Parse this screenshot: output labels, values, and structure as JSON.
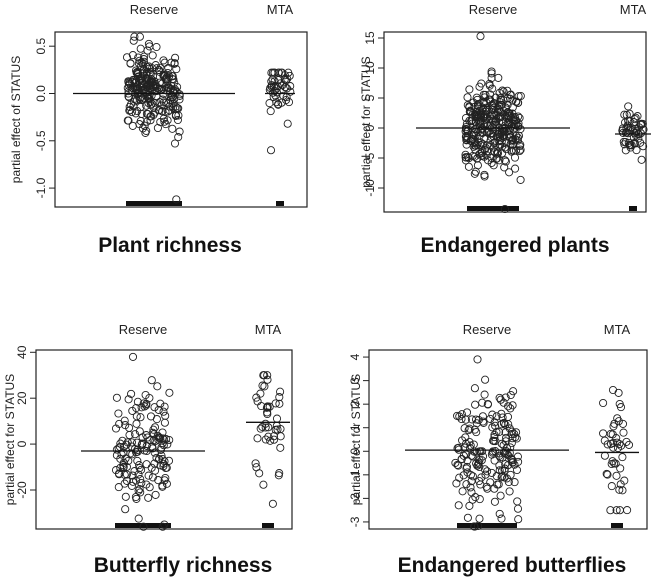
{
  "figure": {
    "background": "#ffffff",
    "ink": "#222222"
  },
  "chart_data": [
    {
      "id": "plant-richness",
      "type": "scatter",
      "title": "Plant richness",
      "ylabel": "partial effect of STATUS",
      "categories": [
        "Reserve",
        "MTA"
      ],
      "ylim": [
        -1.2,
        0.65
      ],
      "yticks": [
        -1.0,
        -0.5,
        0.0,
        0.5
      ],
      "ytick_labels": [
        "-1.0",
        "-0.5",
        "0.0",
        "0.5"
      ],
      "means": [
        0.0,
        0.0
      ],
      "groups": [
        {
          "name": "Reserve",
          "n": 260,
          "center": 0.05,
          "spread": 0.2,
          "min": -1.12,
          "max": 0.6
        },
        {
          "name": "MTA",
          "n": 50,
          "center": 0.03,
          "spread": 0.13,
          "min": -0.6,
          "max": 0.22
        }
      ]
    },
    {
      "id": "endangered-plants",
      "type": "scatter",
      "title": "Endangered plants",
      "ylabel": "partial effect for STATUS",
      "categories": [
        "Reserve",
        "MTA"
      ],
      "ylim": [
        -14,
        16
      ],
      "yticks": [
        -10,
        -5,
        0,
        5,
        10,
        15
      ],
      "ytick_labels": [
        "-10",
        "-5",
        "0",
        "5",
        "10",
        "15"
      ],
      "means": [
        0.0,
        -1.0
      ],
      "groups": [
        {
          "name": "Reserve",
          "n": 330,
          "center": 0.0,
          "spread": 3.5,
          "min": -13.5,
          "max": 15.3
        },
        {
          "name": "MTA",
          "n": 55,
          "center": -1.0,
          "spread": 1.6,
          "min": -5.3,
          "max": 3.6
        }
      ]
    },
    {
      "id": "butterfly-richness",
      "type": "scatter",
      "title": "Butterfly richness",
      "ylabel": "partial effect for STATUS",
      "categories": [
        "Reserve",
        "MTA"
      ],
      "ylim": [
        -37,
        41
      ],
      "yticks": [
        -20,
        0,
        20,
        40
      ],
      "ytick_labels": [
        "-20",
        "0",
        "20",
        "40"
      ],
      "means": [
        -3.0,
        9.5
      ],
      "groups": [
        {
          "name": "Reserve",
          "n": 160,
          "center": -3.0,
          "spread": 13.0,
          "min": -36,
          "max": 38
        },
        {
          "name": "MTA",
          "n": 45,
          "center": 9.5,
          "spread": 11.0,
          "min": -26,
          "max": 30
        }
      ]
    },
    {
      "id": "endangered-butterflies",
      "type": "scatter",
      "title": "Endangered butterflies",
      "ylabel": "partial effect for STATUS",
      "categories": [
        "Reserve",
        "MTA"
      ],
      "ylim": [
        -3.3,
        4.3
      ],
      "yticks": [
        -3,
        -2,
        -1,
        0,
        1,
        2,
        3,
        4
      ],
      "ytick_labels": [
        "-3",
        "-2",
        "-1",
        "0",
        "1",
        "2",
        "3",
        "4"
      ],
      "means": [
        0.05,
        -0.05
      ],
      "groups": [
        {
          "name": "Reserve",
          "n": 190,
          "center": 0.05,
          "spread": 1.3,
          "min": -3.2,
          "max": 3.9
        },
        {
          "name": "MTA",
          "n": 45,
          "center": -0.05,
          "spread": 1.1,
          "min": -2.5,
          "max": 2.6
        }
      ]
    }
  ]
}
